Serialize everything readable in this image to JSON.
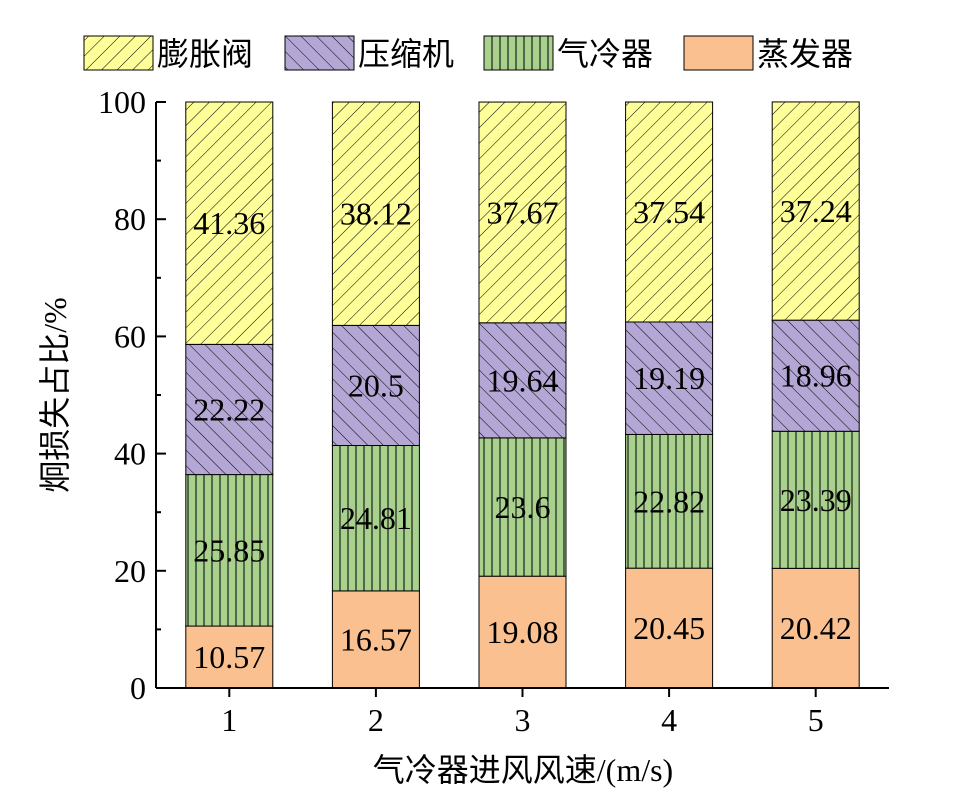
{
  "chart_data": {
    "type": "bar",
    "stacked": true,
    "categories": [
      "1",
      "2",
      "3",
      "4",
      "5"
    ],
    "series": [
      {
        "name": "蒸发器",
        "color": "#FAC090",
        "pattern": "solid",
        "values": [
          10.57,
          16.57,
          19.08,
          20.45,
          20.42
        ]
      },
      {
        "name": "气冷器",
        "color": "#A9D18E",
        "pattern": "vertical",
        "values": [
          25.85,
          24.81,
          23.6,
          22.82,
          23.39
        ]
      },
      {
        "name": "压缩机",
        "color": "#B4A7D6",
        "pattern": "backslash",
        "values": [
          22.22,
          20.5,
          19.64,
          19.19,
          18.96
        ]
      },
      {
        "name": "膨胀阀",
        "color": "#FFFF99",
        "pattern": "slash",
        "values": [
          41.36,
          38.12,
          37.67,
          37.54,
          37.24
        ]
      }
    ],
    "data_label_text": {
      "蒸发器": [
        "10.57",
        "16.57",
        "19.08",
        "20.45",
        "20.42"
      ],
      "气冷器": [
        "25.85",
        "24.81",
        "23.6",
        "22.82",
        "23.39"
      ],
      "压缩机": [
        "22.22",
        "20.5",
        "19.64",
        "19.19",
        "18.96"
      ],
      "膨胀阀": [
        "41.36",
        "38.12",
        "37.67",
        "37.54",
        "37.24"
      ]
    },
    "legend_order": [
      "膨胀阀",
      "压缩机",
      "气冷器",
      "蒸发器"
    ],
    "legend_placement": "top",
    "xlabel": "气冷器进风风速/(m/s)",
    "ylabel": "炯损失占比/%",
    "ylim": [
      0,
      100
    ],
    "yticks": [
      0,
      20,
      40,
      60,
      80,
      100
    ],
    "grid": false
  }
}
